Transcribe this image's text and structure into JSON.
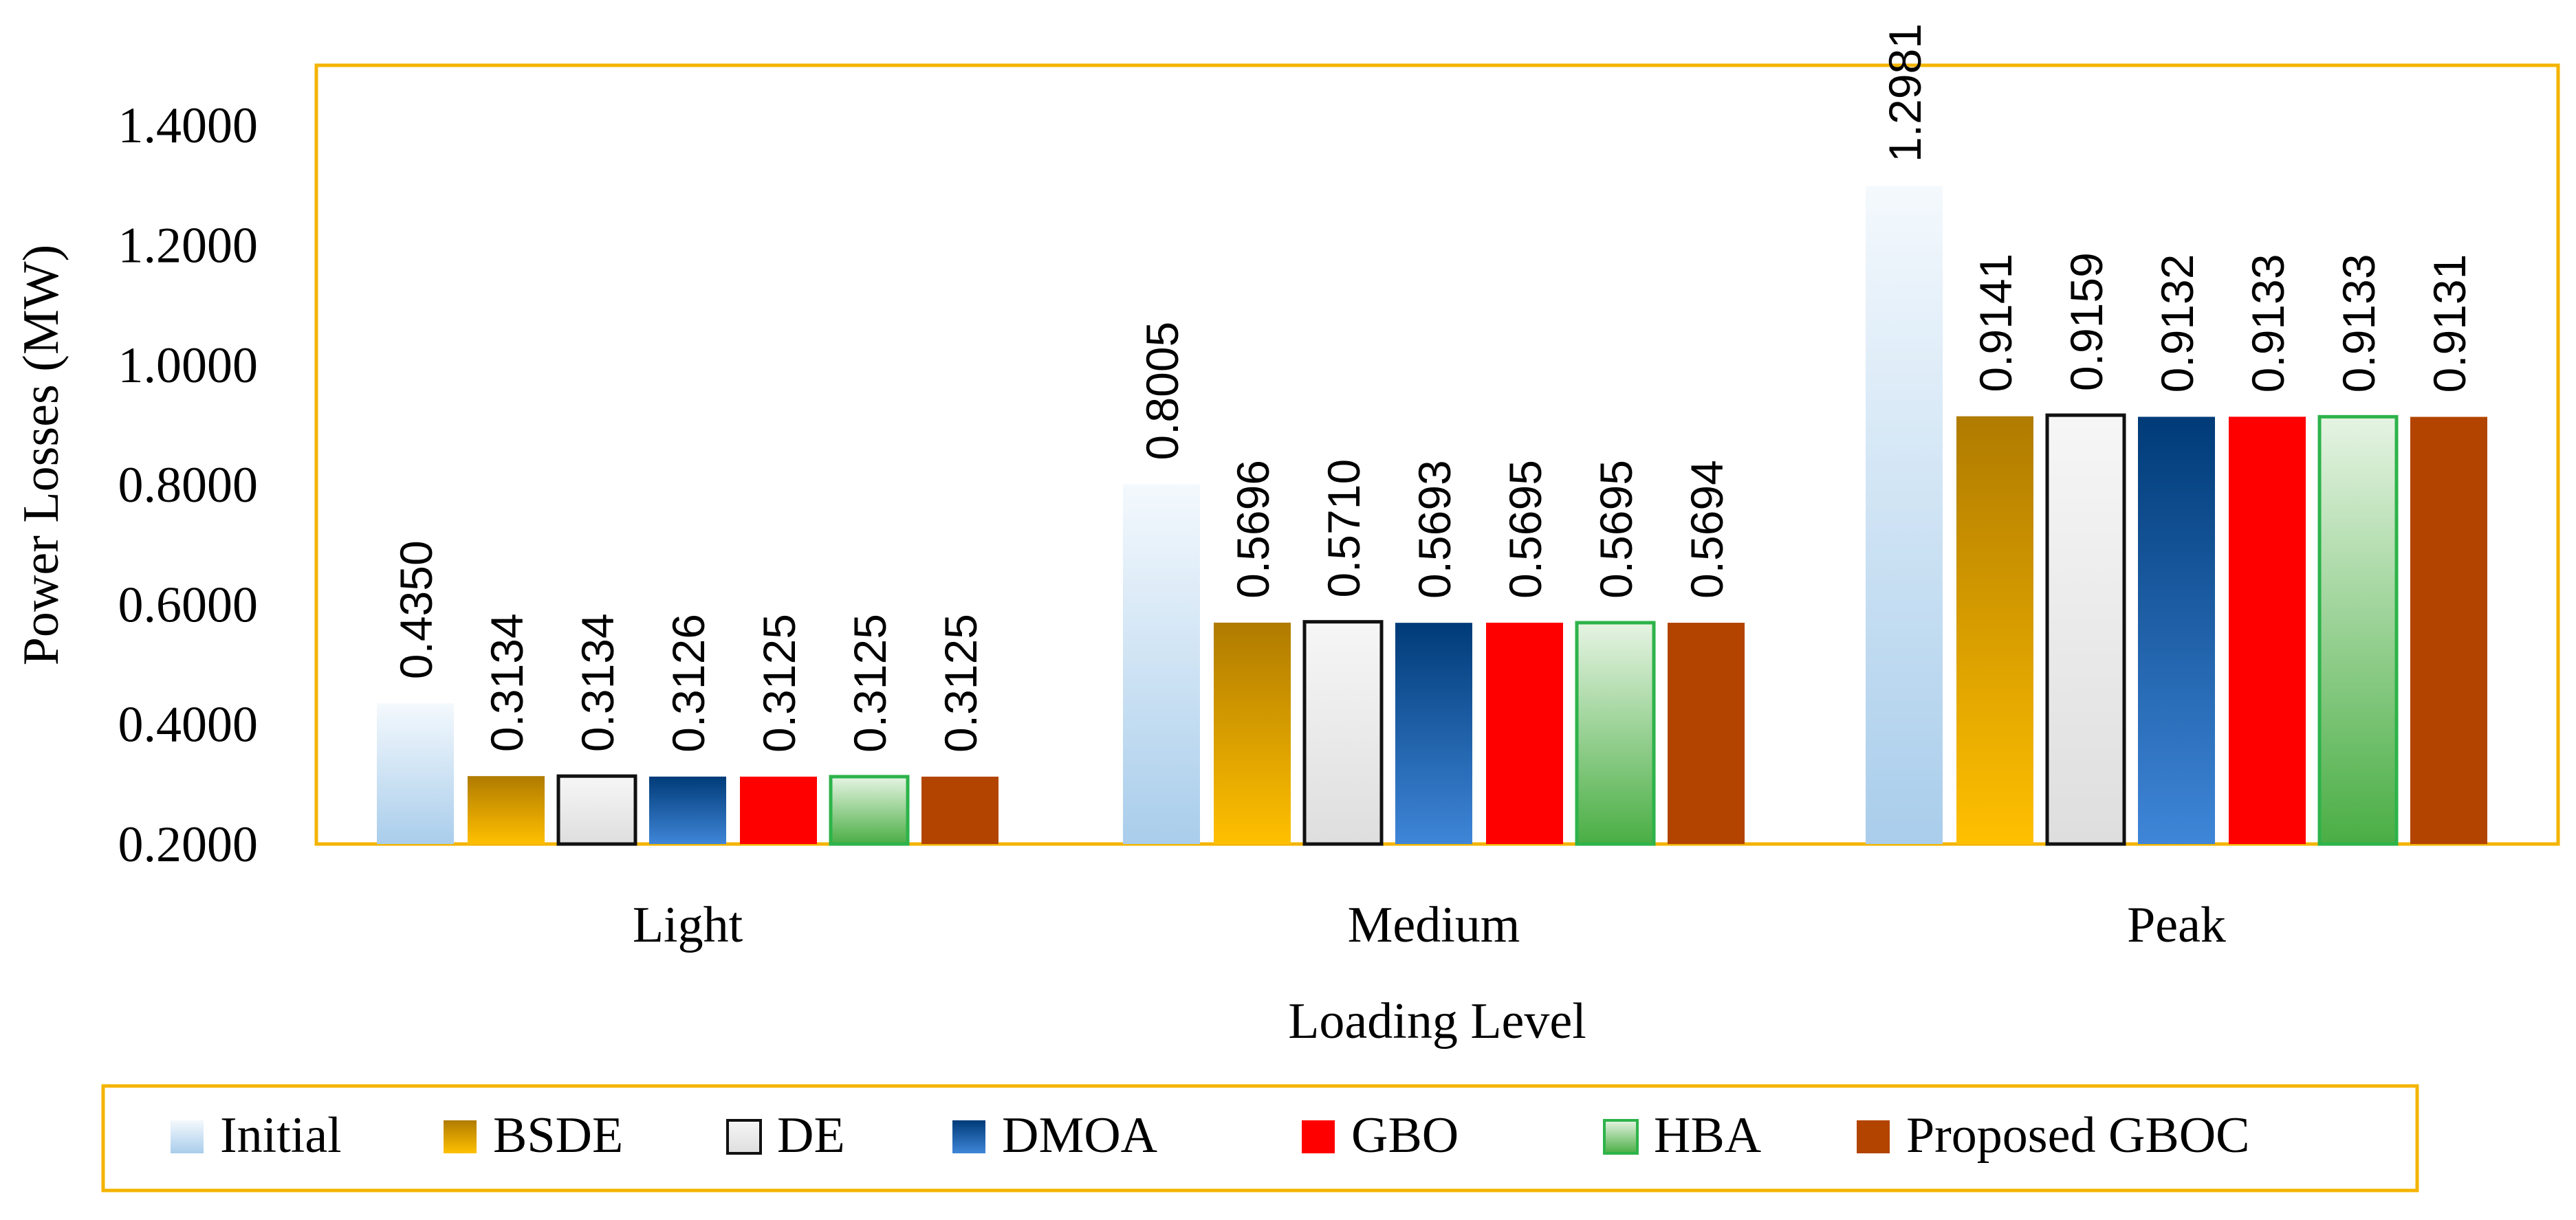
{
  "chart_data": {
    "type": "bar",
    "title": "",
    "xlabel": "Loading Level",
    "ylabel": "Power Losses (MW)",
    "ylim": [
      0.2,
      1.5
    ],
    "yticks": [
      0.2,
      0.4,
      0.6,
      0.8,
      1.0,
      1.2,
      1.4
    ],
    "ytick_labels": [
      "0.2000",
      "0.4000",
      "0.6000",
      "0.8000",
      "1.0000",
      "1.2000",
      "1.4000"
    ],
    "categories": [
      "Light",
      "Medium",
      "Peak"
    ],
    "grid": false,
    "legend_position": "bottom",
    "series": [
      {
        "name": "Initial",
        "values": [
          0.435,
          0.8005,
          1.2981
        ],
        "labels": [
          "0.4350",
          "0.8005",
          "1.2981"
        ],
        "color": "#a9cdeb",
        "color_top": "#f4f9fd",
        "border": "none"
      },
      {
        "name": "BSDE",
        "values": [
          0.3134,
          0.5696,
          0.9141
        ],
        "labels": [
          "0.3134",
          "0.5696",
          "0.9141"
        ],
        "color": "#ffc000",
        "color_top": "#b07b00",
        "border": "none"
      },
      {
        "name": "DE",
        "values": [
          0.3134,
          0.571,
          0.9159
        ],
        "labels": [
          "0.3134",
          "0.5710",
          "0.9159"
        ],
        "color": "#dedede",
        "color_top": "#f6f6f6",
        "border": "#111111"
      },
      {
        "name": "DMOA",
        "values": [
          0.3126,
          0.5693,
          0.9132
        ],
        "labels": [
          "0.3126",
          "0.5693",
          "0.9132"
        ],
        "color": "#3f86d8",
        "color_top": "#003b78",
        "border": "none"
      },
      {
        "name": "GBO",
        "values": [
          0.3125,
          0.5695,
          0.9133
        ],
        "labels": [
          "0.3125",
          "0.5695",
          "0.9133"
        ],
        "color": "#ff0000",
        "color_top": "#ff0000",
        "border": "none"
      },
      {
        "name": "HBA",
        "values": [
          0.3125,
          0.5695,
          0.9133
        ],
        "labels": [
          "0.3125",
          "0.5695",
          "0.9133"
        ],
        "color": "#4aae44",
        "color_top": "#e6f4e3",
        "border": "#2db34a"
      },
      {
        "name": "Proposed GBOC",
        "values": [
          0.3125,
          0.5694,
          0.9131
        ],
        "labels": [
          "0.3125",
          "0.5694",
          "0.9131"
        ],
        "color": "#b24400",
        "color_top": "#b24400",
        "border": "none"
      }
    ],
    "frame_color": "#f4b400"
  }
}
